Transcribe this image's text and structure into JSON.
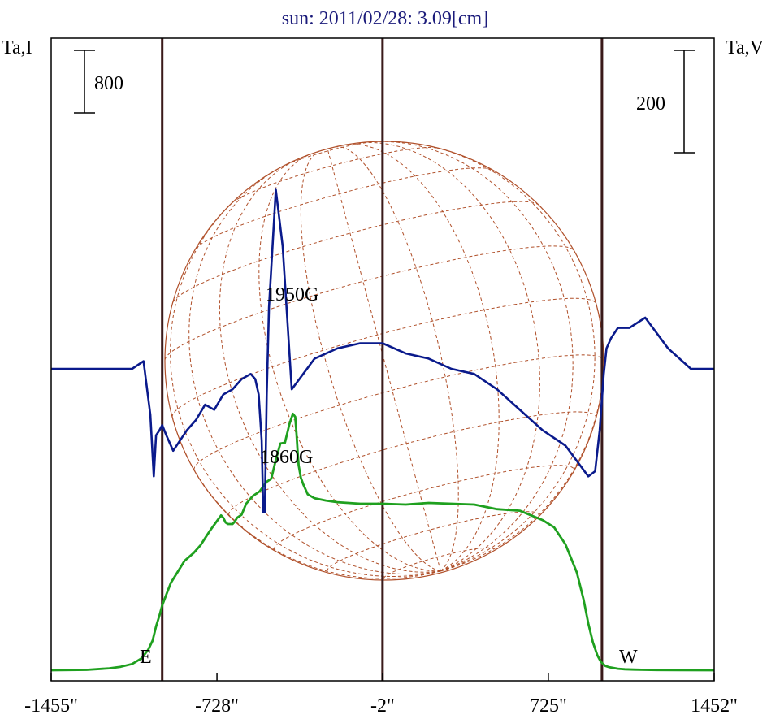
{
  "chart_data": {
    "type": "line",
    "title": "sun: 2011/02/28: 3.09[cm]",
    "ylabel_left": "Ta,I",
    "ylabel_right": "Ta,V",
    "scale_left": "800",
    "scale_right": "200",
    "xlim": [
      -1455,
      1452
    ],
    "x_tick_labels": [
      "-1455\"",
      "-728\"",
      "-2\"",
      "725\"",
      "1452\""
    ],
    "x_ticks": [
      -1455,
      -728,
      -2,
      725,
      1452
    ],
    "vertical_lines": [
      -968,
      -2,
      960
    ],
    "limb_labels": [
      "E",
      "W"
    ],
    "annotations": [
      "1950G",
      "1860G"
    ],
    "colors": {
      "intensity": "#1fa01f",
      "polarization": "#0a1a8c",
      "frame": "#000000",
      "markers": "#3a1a1a",
      "grid": "#b0502a"
    },
    "series": [
      {
        "key": "intensity",
        "x": [
          -1455,
          -1300,
          -1200,
          -1150,
          -1100,
          -1060,
          -1030,
          -1010,
          -995,
          -980,
          -968,
          -950,
          -930,
          -900,
          -870,
          -830,
          -800,
          -760,
          -730,
          -710,
          -700,
          -690,
          -680,
          -660,
          -650,
          -640,
          -620,
          -600,
          -570,
          -540,
          -510,
          -490,
          -470,
          -450,
          -430,
          -410,
          -395,
          -385,
          -380,
          -375,
          -370,
          -360,
          -350,
          -330,
          -300,
          -250,
          -200,
          -100,
          -2,
          100,
          200,
          300,
          400,
          500,
          600,
          700,
          750,
          800,
          850,
          880,
          900,
          920,
          940,
          955,
          965,
          975,
          990,
          1010,
          1030,
          1060,
          1100,
          1150,
          1200,
          1300,
          1452
        ],
        "y": [
          0,
          5,
          25,
          45,
          80,
          150,
          260,
          380,
          560,
          700,
          830,
          970,
          1120,
          1260,
          1400,
          1500,
          1600,
          1780,
          1900,
          1980,
          1950,
          1890,
          1870,
          1870,
          1900,
          1950,
          1990,
          2130,
          2230,
          2290,
          2410,
          2450,
          2690,
          2900,
          2910,
          3150,
          3280,
          3240,
          3050,
          2820,
          2620,
          2460,
          2380,
          2250,
          2200,
          2170,
          2150,
          2130,
          2130,
          2120,
          2140,
          2130,
          2120,
          2060,
          2040,
          1920,
          1830,
          1610,
          1250,
          900,
          600,
          360,
          190,
          110,
          80,
          55,
          40,
          30,
          20,
          12,
          8,
          5,
          3,
          1,
          0
        ]
      },
      {
        "key": "polarization",
        "x": [
          -1455,
          -1100,
          -1050,
          -1020,
          -1005,
          -995,
          -980,
          -968,
          -950,
          -920,
          -890,
          -860,
          -820,
          -780,
          -740,
          -700,
          -660,
          -620,
          -580,
          -560,
          -545,
          -532,
          -525,
          -518,
          -510,
          -500,
          -470,
          -440,
          -400,
          -300,
          -200,
          -100,
          -2,
          100,
          200,
          300,
          400,
          500,
          600,
          700,
          800,
          900,
          930,
          950,
          968,
          980,
          1000,
          1030,
          1080,
          1150,
          1250,
          1350,
          1452
        ],
        "y": [
          0,
          0,
          15,
          -90,
          -210,
          -130,
          -120,
          -110,
          -130,
          -160,
          -140,
          -120,
          -100,
          -70,
          -80,
          -50,
          -40,
          -20,
          -10,
          -20,
          -50,
          -140,
          -280,
          -280,
          -50,
          120,
          350,
          240,
          -40,
          20,
          40,
          50,
          50,
          30,
          20,
          0,
          -10,
          -40,
          -80,
          -120,
          -150,
          -210,
          -200,
          -120,
          -10,
          40,
          60,
          80,
          80,
          100,
          40,
          0,
          0
        ]
      }
    ]
  }
}
